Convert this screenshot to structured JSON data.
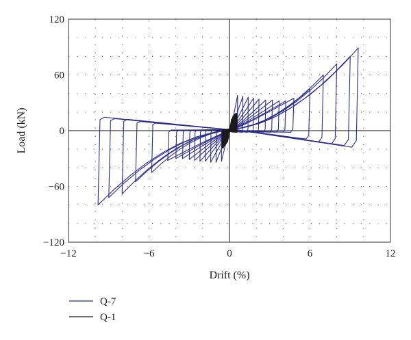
{
  "colors": {
    "q7": "#2b2b8f",
    "q1": "#1a1a1a",
    "grid": "#555555",
    "frame": "#333333"
  },
  "chart_data": {
    "type": "line",
    "title": "",
    "xlabel": "Drift (%)",
    "ylabel": "Load (kN)",
    "xlim": [
      -12,
      12
    ],
    "ylim": [
      -120,
      120
    ],
    "xticks": [
      -12,
      -6,
      0,
      6,
      12
    ],
    "yticks": [
      -120,
      -60,
      0,
      60,
      120
    ],
    "x_tick_labels": [
      "−12",
      "−6",
      "0",
      "6",
      "12"
    ],
    "y_tick_labels": [
      "−120",
      "−60",
      "0",
      "60",
      "120"
    ],
    "grid": "dotted",
    "legend_position": "bottom-left",
    "series": [
      {
        "name": "Q-7",
        "color": "#2b2b8f",
        "kind": "hysteresis",
        "cycles": [
          {
            "x_max": 0.6,
            "y_max": 38,
            "x_min": -0.6,
            "y_min": -33
          },
          {
            "x_max": 1.0,
            "y_max": 37,
            "x_min": -1.0,
            "y_min": -34
          },
          {
            "x_max": 1.4,
            "y_max": 36,
            "x_min": -1.4,
            "y_min": -34
          },
          {
            "x_max": 1.8,
            "y_max": 35,
            "x_min": -1.8,
            "y_min": -33
          },
          {
            "x_max": 2.2,
            "y_max": 34,
            "x_min": -2.2,
            "y_min": -33
          },
          {
            "x_max": 2.7,
            "y_max": 33,
            "x_min": -2.6,
            "y_min": -32
          },
          {
            "x_max": 3.2,
            "y_max": 33,
            "x_min": -3.0,
            "y_min": -31
          },
          {
            "x_max": 3.7,
            "y_max": 32,
            "x_min": -3.5,
            "y_min": -30
          },
          {
            "x_max": 4.2,
            "y_max": 32,
            "x_min": -4.0,
            "y_min": -30
          },
          {
            "x_max": 4.8,
            "y_max": 35,
            "x_min": -4.6,
            "y_min": -32
          },
          {
            "x_max": 6.0,
            "y_max": 45,
            "x_min": -5.8,
            "y_min": -45
          },
          {
            "x_max": 7.0,
            "y_max": 60,
            "x_min": -7.0,
            "y_min": -55
          },
          {
            "x_max": 8.0,
            "y_max": 72,
            "x_min": -8.0,
            "y_min": -68
          },
          {
            "x_max": 9.0,
            "y_max": 80,
            "x_min": -9.0,
            "y_min": -72
          },
          {
            "x_max": 9.6,
            "y_max": 89,
            "x_min": -9.8,
            "y_min": -80
          }
        ]
      },
      {
        "name": "Q-1",
        "color": "#1a1a1a",
        "kind": "hysteresis",
        "cycles": [
          {
            "x_max": 0.2,
            "y_max": 12,
            "x_min": -0.2,
            "y_min": -12
          },
          {
            "x_max": 0.3,
            "y_max": 15,
            "x_min": -0.3,
            "y_min": -14
          },
          {
            "x_max": 0.4,
            "y_max": 17,
            "x_min": -0.4,
            "y_min": -16
          },
          {
            "x_max": 0.5,
            "y_max": 18,
            "x_min": -0.5,
            "y_min": -18
          }
        ]
      }
    ]
  }
}
